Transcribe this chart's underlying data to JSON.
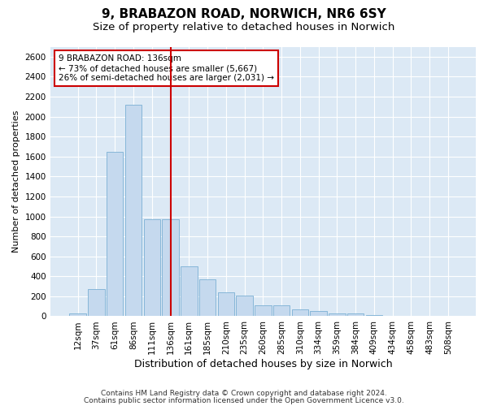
{
  "title1": "9, BRABAZON ROAD, NORWICH, NR6 6SY",
  "title2": "Size of property relative to detached houses in Norwich",
  "xlabel": "Distribution of detached houses by size in Norwich",
  "ylabel": "Number of detached properties",
  "categories": [
    "12sqm",
    "37sqm",
    "61sqm",
    "86sqm",
    "111sqm",
    "136sqm",
    "161sqm",
    "185sqm",
    "210sqm",
    "235sqm",
    "260sqm",
    "285sqm",
    "310sqm",
    "334sqm",
    "359sqm",
    "384sqm",
    "409sqm",
    "434sqm",
    "458sqm",
    "483sqm",
    "508sqm"
  ],
  "values": [
    30,
    270,
    1650,
    2120,
    970,
    970,
    500,
    370,
    240,
    210,
    110,
    110,
    70,
    55,
    30,
    25,
    10,
    5,
    5,
    5,
    5
  ],
  "bar_color": "#c5d9ee",
  "bar_edge_color": "#7aafd4",
  "marker_index": 5,
  "marker_color": "#cc0000",
  "annotation_text": "9 BRABAZON ROAD: 136sqm\n← 73% of detached houses are smaller (5,667)\n26% of semi-detached houses are larger (2,031) →",
  "annotation_box_color": "#cc0000",
  "ylim": [
    0,
    2700
  ],
  "yticks": [
    0,
    200,
    400,
    600,
    800,
    1000,
    1200,
    1400,
    1600,
    1800,
    2000,
    2200,
    2400,
    2600
  ],
  "footnote1": "Contains HM Land Registry data © Crown copyright and database right 2024.",
  "footnote2": "Contains public sector information licensed under the Open Government Licence v3.0.",
  "plot_background": "#dce9f5",
  "grid_color": "#ffffff",
  "title1_fontsize": 11,
  "title2_fontsize": 9.5,
  "xlabel_fontsize": 9,
  "ylabel_fontsize": 8,
  "tick_fontsize": 7.5,
  "annotation_fontsize": 7.5,
  "footnote_fontsize": 6.5
}
